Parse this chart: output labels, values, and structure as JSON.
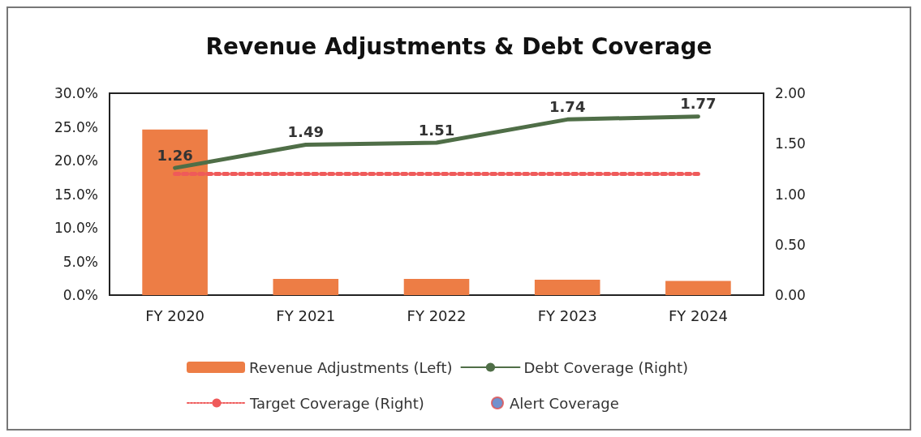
{
  "chart_data": {
    "type": "bar",
    "title": "Revenue Adjustments & Debt Coverage",
    "categories": [
      "FY 2020",
      "FY 2021",
      "FY 2022",
      "FY 2023",
      "FY 2024"
    ],
    "series": [
      {
        "name": "Revenue Adjustments (Left)",
        "color": "#ed7d45",
        "values": [
          24.6,
          2.4,
          2.4,
          2.3,
          2.1
        ]
      },
      {
        "name": "Debt Coverage (Right)",
        "type": "line",
        "axis": "y2",
        "color": "#4f6e47",
        "line_style": "solid",
        "values": [
          1.26,
          1.49,
          1.51,
          1.74,
          1.77
        ],
        "value_labels": [
          "1.26",
          "1.49",
          "1.51",
          "1.74",
          "1.77"
        ]
      },
      {
        "name": "Target Coverage (Right)",
        "type": "line",
        "axis": "y2",
        "color": "#ef5a5a",
        "line_style": "dotted",
        "values": [
          1.2,
          1.2,
          1.2,
          1.2,
          1.2
        ]
      },
      {
        "name": "Alert Coverage",
        "type": "scatter",
        "axis": "y2",
        "color": "#4f76c0",
        "marker": "circle",
        "values": [
          null,
          null,
          null,
          null,
          null
        ]
      }
    ],
    "ylim": [
      0,
      30
    ],
    "yticks": [
      {
        "value": 0,
        "label": "0.0%"
      },
      {
        "value": 5,
        "label": "5.0%"
      },
      {
        "value": 10,
        "label": "10.0%"
      },
      {
        "value": 15,
        "label": "15.0%"
      },
      {
        "value": 20,
        "label": "20.0%"
      },
      {
        "value": 25,
        "label": "25.0%"
      },
      {
        "value": 30,
        "label": "30.0%"
      }
    ],
    "y2lim": [
      0,
      2
    ],
    "y2ticks": [
      {
        "value": 0,
        "label": "0.00"
      },
      {
        "value": 0.5,
        "label": "0.50"
      },
      {
        "value": 1,
        "label": "1.00"
      },
      {
        "value": 1.5,
        "label": "1.50"
      },
      {
        "value": 2,
        "label": "2.00"
      }
    ],
    "grid": false,
    "legend": "bottom"
  }
}
